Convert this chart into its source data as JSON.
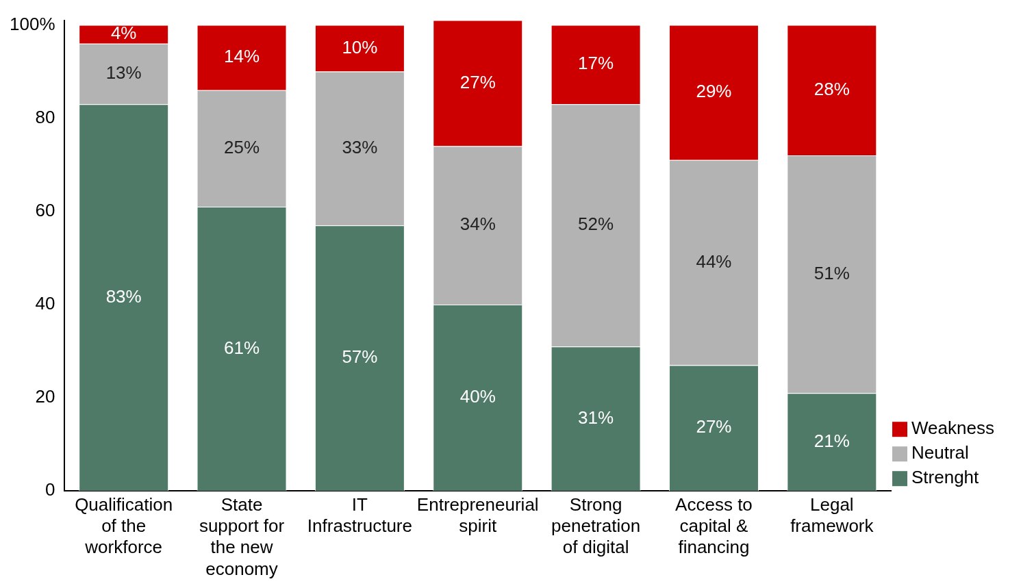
{
  "chart_data": {
    "type": "bar",
    "stacked": true,
    "categories": [
      "Qualification of the workforce",
      "State support for the new economy",
      "IT Infrastructure",
      "Entrepreneurial spirit",
      "Strong penetration of digital",
      "Access to capital & financing",
      "Legal framework"
    ],
    "series": [
      {
        "name": "Strenght",
        "color": "#4f7a67",
        "values": [
          83,
          61,
          57,
          40,
          31,
          27,
          21
        ],
        "value_labels": [
          "83%",
          "61%",
          "57%",
          "40%",
          "31%",
          "27%",
          "21%"
        ]
      },
      {
        "name": "Neutral",
        "color": "#b3b3b3",
        "values": [
          13,
          25,
          33,
          34,
          52,
          44,
          51
        ],
        "value_labels": [
          "13%",
          "25%",
          "33%",
          "34%",
          "52%",
          "44%",
          "51%"
        ]
      },
      {
        "name": "Weakness",
        "color": "#cc0000",
        "values": [
          4,
          14,
          10,
          27,
          17,
          29,
          28
        ],
        "value_labels": [
          "4%",
          "14%",
          "10%",
          "27%",
          "17%",
          "29%",
          "28%"
        ]
      }
    ],
    "ylim": [
      0,
      101
    ],
    "yticks": [
      0,
      20,
      40,
      60,
      80,
      {
        "value": 100,
        "label": "100%"
      }
    ],
    "grid": false,
    "legend": "bottom right"
  }
}
